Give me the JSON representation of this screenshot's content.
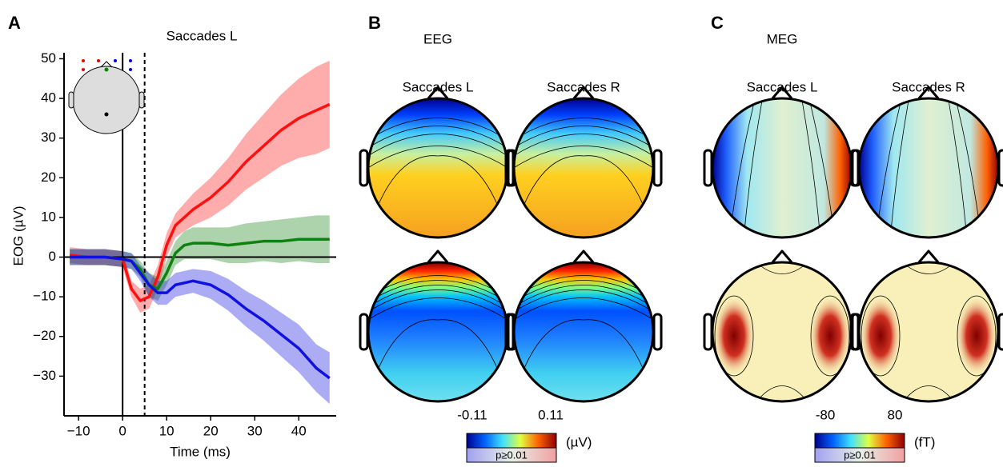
{
  "chart_data": {
    "type": "line",
    "panel_label": "A",
    "title": "Saccades L",
    "xlabel": "Time (ms)",
    "ylabel": "EOG (µV)",
    "x": [
      -12,
      -8,
      -4,
      0,
      2,
      4,
      6,
      8,
      10,
      12,
      14,
      16,
      20,
      24,
      28,
      32,
      36,
      40,
      44,
      47
    ],
    "series": [
      {
        "color": "#ff1010",
        "values": [
          0.5,
          0,
          0,
          -0.5,
          -8,
          -11,
          -10,
          -5,
          3,
          8,
          10,
          12,
          15,
          19,
          24,
          28,
          32,
          35,
          37,
          38.5
        ],
        "error": [
          2,
          2,
          2,
          2,
          2,
          3,
          3,
          3,
          3,
          3,
          3.5,
          4,
          5,
          6,
          7,
          8,
          9,
          10,
          11,
          11
        ]
      },
      {
        "color": "#108010",
        "values": [
          0,
          0,
          0,
          -0.5,
          -1,
          -3,
          -7,
          -8,
          -4,
          1,
          3,
          3.5,
          3.5,
          3,
          3.5,
          4,
          4,
          4.5,
          4.5,
          4.5
        ],
        "error": [
          2,
          2,
          2,
          2,
          2,
          2,
          3,
          3,
          3,
          3,
          3.5,
          4,
          4,
          4.5,
          5,
          5,
          5.5,
          5.5,
          6,
          6
        ]
      },
      {
        "color": "#1010e0",
        "values": [
          0,
          0,
          0,
          -0.5,
          -1,
          -4,
          -7,
          -9,
          -9,
          -7,
          -6.5,
          -6,
          -7,
          -9.5,
          -13,
          -16,
          -19.5,
          -23,
          -28,
          -30.5
        ],
        "error": [
          2,
          2,
          2,
          2,
          2,
          2,
          3,
          3,
          3,
          3,
          3,
          3,
          3.5,
          4,
          4.5,
          5,
          5.5,
          6,
          6,
          6.5
        ]
      }
    ],
    "xlim": [
      -13.3,
      48.5
    ],
    "ylim": [
      -40,
      51.5
    ],
    "xticks": [
      {
        "value": -10,
        "label": "−10"
      },
      0,
      10,
      20,
      30,
      40
    ],
    "yticks": [
      {
        "value": -30,
        "label": "−30"
      },
      {
        "value": -20,
        "label": "−20"
      },
      {
        "value": -10,
        "label": "−10"
      },
      0,
      10,
      20,
      30,
      40,
      50
    ],
    "reference_lines": [
      {
        "axis": "x",
        "value": 0,
        "dashed": false
      },
      {
        "axis": "x",
        "value": 5,
        "dashed": true
      },
      {
        "axis": "y",
        "value": 0,
        "dashed": false
      }
    ]
  },
  "panel_b": {
    "label": "B",
    "title": "EEG",
    "columns": [
      "Saccades L",
      "Saccades R"
    ],
    "colorbar": {
      "min": -0.11,
      "max": 0.11,
      "unit": "(µV)",
      "note": "p≥0.01"
    }
  },
  "panel_c": {
    "label": "C",
    "title": "MEG",
    "columns": [
      "Saccades L",
      "Saccades R"
    ],
    "colorbar": {
      "min": -80,
      "max": 80,
      "unit": "(fT)",
      "note": "p≥0.01"
    }
  }
}
